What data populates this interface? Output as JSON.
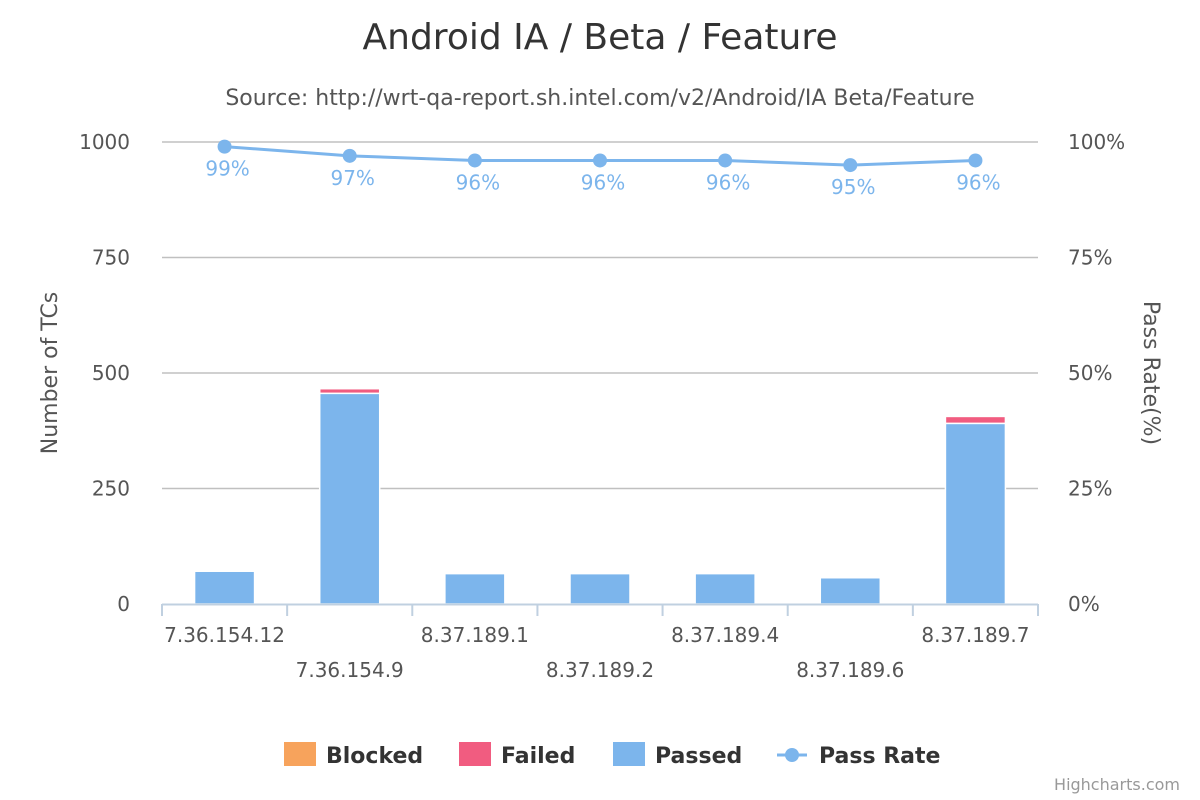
{
  "chart_data": {
    "type": "bar",
    "title": "Android IA / Beta / Feature",
    "subtitle": "Source: http://wrt-qa-report.sh.intel.com/v2/Android/IA Beta/Feature",
    "categories": [
      "7.36.154.12",
      "7.36.154.9",
      "8.37.189.1",
      "8.37.189.2",
      "8.37.189.4",
      "8.37.189.6",
      "8.37.189.7"
    ],
    "stacked": true,
    "series": [
      {
        "name": "Blocked",
        "type": "column",
        "color": "#f7a35c",
        "values": [
          0,
          0,
          0,
          0,
          0,
          0,
          0
        ]
      },
      {
        "name": "Failed",
        "type": "column",
        "color": "#f15c80",
        "values": [
          1,
          10,
          1,
          1,
          1,
          1,
          15
        ]
      },
      {
        "name": "Passed",
        "type": "column",
        "color": "#7cb5ec",
        "values": [
          71,
          456,
          66,
          66,
          66,
          57,
          391
        ]
      },
      {
        "name": "Pass Rate",
        "type": "line",
        "axis": "right",
        "color": "#7cb5ec",
        "values": [
          99,
          97,
          96,
          96,
          96,
          95,
          96
        ],
        "labels": [
          "99%",
          "97%",
          "96%",
          "96%",
          "96%",
          "95%",
          "96%"
        ]
      }
    ],
    "yAxisLeft": {
      "title": "Number of TCs",
      "ticks": [
        "0",
        "250",
        "500",
        "750",
        "1000"
      ],
      "range": [
        0,
        1000
      ]
    },
    "yAxisRight": {
      "title": "Pass Rate(%)",
      "ticks": [
        "0%",
        "25%",
        "50%",
        "75%",
        "100%"
      ],
      "range": [
        0,
        100
      ]
    },
    "grid": true,
    "legend": {
      "position": "bottom-center"
    }
  },
  "credits": "Highcharts.com"
}
